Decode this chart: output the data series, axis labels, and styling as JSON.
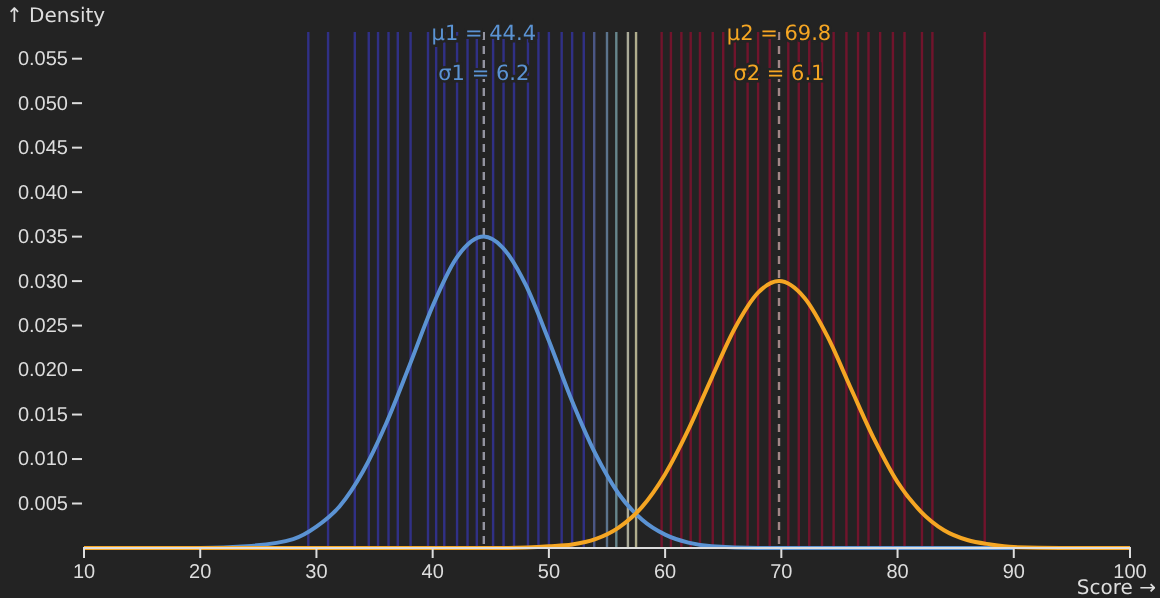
{
  "chart_data": {
    "type": "line",
    "xlabel": "Score →",
    "ylabel": "↑ Density",
    "xlim": [
      10,
      100
    ],
    "xticks": [
      10,
      20,
      30,
      40,
      50,
      60,
      70,
      80,
      90,
      100
    ],
    "ylim": [
      0,
      0.058
    ],
    "yticks": [
      0.005,
      {
        "value": 0.01,
        "label": "0.010"
      },
      0.015,
      {
        "value": 0.02,
        "label": "0.020"
      },
      0.025,
      {
        "value": 0.03,
        "label": "0.030"
      },
      0.035,
      {
        "value": 0.04,
        "label": "0.040"
      },
      0.045,
      {
        "value": 0.05,
        "label": "0.050"
      },
      0.055
    ],
    "grid": false,
    "marker": "none",
    "line_style": "solid",
    "series": [
      {
        "color": "#5b93d3",
        "x": [
          10,
          20,
          24,
          28,
          30,
          32,
          34,
          36,
          38,
          40,
          42,
          44.4,
          46,
          48,
          50,
          52,
          54,
          56,
          58,
          60,
          62,
          64,
          68,
          72,
          80,
          90
        ],
        "values": [
          0,
          0,
          0.0002,
          0.001,
          0.0024,
          0.0047,
          0.0086,
          0.014,
          0.0205,
          0.0272,
          0.0325,
          0.035,
          0.0338,
          0.0296,
          0.0233,
          0.0165,
          0.0106,
          0.0061,
          0.0032,
          0.0015,
          0.0006,
          0.0002,
          0,
          0,
          0,
          0
        ]
      },
      {
        "color": "#f5a623",
        "x": [
          10,
          40,
          46,
          50,
          52,
          54,
          56,
          58,
          60,
          62,
          64,
          66,
          68,
          69.8,
          72,
          74,
          76,
          78,
          80,
          82,
          84,
          86,
          88,
          90,
          94,
          100
        ],
        "values": [
          0,
          0,
          0,
          0.0002,
          0.0004,
          0.001,
          0.0023,
          0.0046,
          0.0083,
          0.0133,
          0.0191,
          0.0247,
          0.0287,
          0.03,
          0.0281,
          0.0237,
          0.0179,
          0.0122,
          0.0074,
          0.0041,
          0.002,
          0.0009,
          0.0004,
          0.0001,
          0,
          0
        ]
      }
    ],
    "ref_lines": [
      {
        "axis": "x",
        "value": 29.3,
        "color": "#3535a8"
      },
      {
        "axis": "x",
        "value": 31.0,
        "color": "#3535a8"
      },
      {
        "axis": "x",
        "value": 33.3,
        "color": "#3535a8"
      },
      {
        "axis": "x",
        "value": 34.5,
        "color": "#3535a8"
      },
      {
        "axis": "x",
        "value": 35.3,
        "color": "#3535a8"
      },
      {
        "axis": "x",
        "value": 36.2,
        "color": "#3535a8"
      },
      {
        "axis": "x",
        "value": 37.0,
        "color": "#3535a8"
      },
      {
        "axis": "x",
        "value": 38.1,
        "color": "#3535a8"
      },
      {
        "axis": "x",
        "value": 39.6,
        "color": "#3535a8"
      },
      {
        "axis": "x",
        "value": 40.3,
        "color": "#3535a8"
      },
      {
        "axis": "x",
        "value": 41.0,
        "color": "#3535a8"
      },
      {
        "axis": "x",
        "value": 42.1,
        "color": "#3535a8"
      },
      {
        "axis": "x",
        "value": 43.0,
        "color": "#3535a8"
      },
      {
        "axis": "x",
        "value": 43.8,
        "color": "#3535a8"
      },
      {
        "axis": "x",
        "value": 45.2,
        "color": "#3535a8"
      },
      {
        "axis": "x",
        "value": 46.1,
        "color": "#3535a8"
      },
      {
        "axis": "x",
        "value": 47.0,
        "color": "#3535a8"
      },
      {
        "axis": "x",
        "value": 48.2,
        "color": "#3535a8"
      },
      {
        "axis": "x",
        "value": 49.1,
        "color": "#3535a8"
      },
      {
        "axis": "x",
        "value": 50.0,
        "color": "#3535a8"
      },
      {
        "axis": "x",
        "value": 51.1,
        "color": "#3535a8"
      },
      {
        "axis": "x",
        "value": 52.0,
        "color": "#3535a8"
      },
      {
        "axis": "x",
        "value": 53.0,
        "color": "#3535a8"
      },
      {
        "axis": "x",
        "value": 53.9,
        "color": "#5a6aa8"
      },
      {
        "axis": "x",
        "value": 55.0,
        "color": "#6f8fb0"
      },
      {
        "axis": "x",
        "value": 55.8,
        "color": "#7fa8b0"
      },
      {
        "axis": "x",
        "value": 56.8,
        "color": "#d8d8c0"
      },
      {
        "axis": "x",
        "value": 57.5,
        "color": "#e0dcb0"
      },
      {
        "axis": "x",
        "value": 59.7,
        "color": "#8c1030"
      },
      {
        "axis": "x",
        "value": 60.5,
        "color": "#8c1030"
      },
      {
        "axis": "x",
        "value": 61.4,
        "color": "#8c1030"
      },
      {
        "axis": "x",
        "value": 62.2,
        "color": "#8c1030"
      },
      {
        "axis": "x",
        "value": 63.0,
        "color": "#8c1030"
      },
      {
        "axis": "x",
        "value": 64.1,
        "color": "#8c1030"
      },
      {
        "axis": "x",
        "value": 65.0,
        "color": "#8c1030"
      },
      {
        "axis": "x",
        "value": 66.0,
        "color": "#8c1030"
      },
      {
        "axis": "x",
        "value": 67.1,
        "color": "#8c1030"
      },
      {
        "axis": "x",
        "value": 68.0,
        "color": "#8c1030"
      },
      {
        "axis": "x",
        "value": 69.0,
        "color": "#8c1030"
      },
      {
        "axis": "x",
        "value": 70.6,
        "color": "#8c1030"
      },
      {
        "axis": "x",
        "value": 71.5,
        "color": "#8c1030"
      },
      {
        "axis": "x",
        "value": 72.4,
        "color": "#8c1030"
      },
      {
        "axis": "x",
        "value": 73.5,
        "color": "#8c1030"
      },
      {
        "axis": "x",
        "value": 74.5,
        "color": "#8c1030"
      },
      {
        "axis": "x",
        "value": 75.6,
        "color": "#8c1030"
      },
      {
        "axis": "x",
        "value": 76.6,
        "color": "#8c1030"
      },
      {
        "axis": "x",
        "value": 77.5,
        "color": "#8c1030"
      },
      {
        "axis": "x",
        "value": 78.5,
        "color": "#8c1030"
      },
      {
        "axis": "x",
        "value": 79.6,
        "color": "#8c1030"
      },
      {
        "axis": "x",
        "value": 80.6,
        "color": "#8c1030"
      },
      {
        "axis": "x",
        "value": 82.1,
        "color": "#8c1030"
      },
      {
        "axis": "x",
        "value": 83.0,
        "color": "#8c1030"
      },
      {
        "axis": "x",
        "value": 87.5,
        "color": "#8c1030"
      },
      {
        "axis": "x",
        "value": 44.4,
        "color": "#b0b0c0",
        "line_style": "dashed",
        "label": "μ1 = 44.4"
      },
      {
        "axis": "x",
        "value": 69.8,
        "color": "#c0a0a0",
        "line_style": "dashed",
        "label": "μ2 = 69.8"
      }
    ],
    "annotations": [
      {
        "text": "σ1 = 6.2",
        "x": 44.4,
        "y": 0.0535
      },
      {
        "text": "σ2 = 6.1",
        "x": 69.8,
        "y": 0.0535
      }
    ]
  }
}
